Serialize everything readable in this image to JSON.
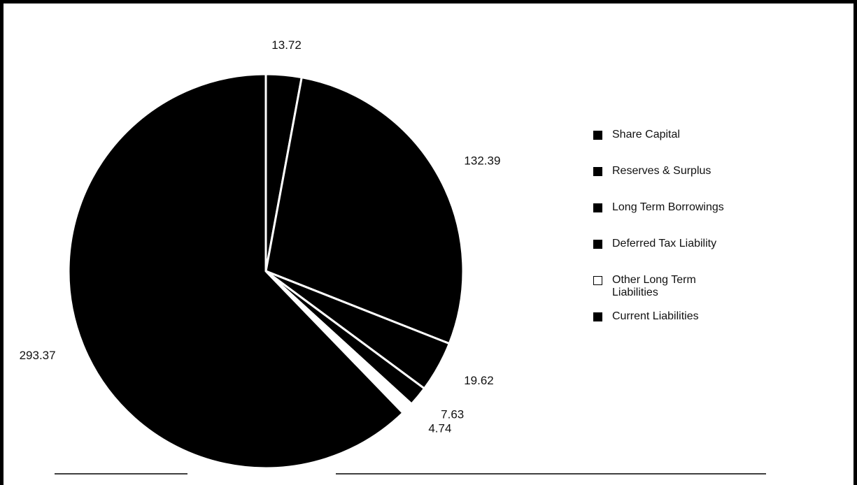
{
  "chart_data": {
    "type": "pie",
    "categories": [
      "Share Capital",
      "Reserves & Surplus",
      "Long Term Borrowings",
      "Deferred Tax Liability",
      "Other Long Term Liabilities",
      "Current Liabilities"
    ],
    "values": [
      13.72,
      132.39,
      19.62,
      7.63,
      4.74,
      293.37
    ],
    "colors": [
      "#000000",
      "#000000",
      "#000000",
      "#000000",
      "#ffffff",
      "#000000"
    ],
    "legend": "right"
  }
}
